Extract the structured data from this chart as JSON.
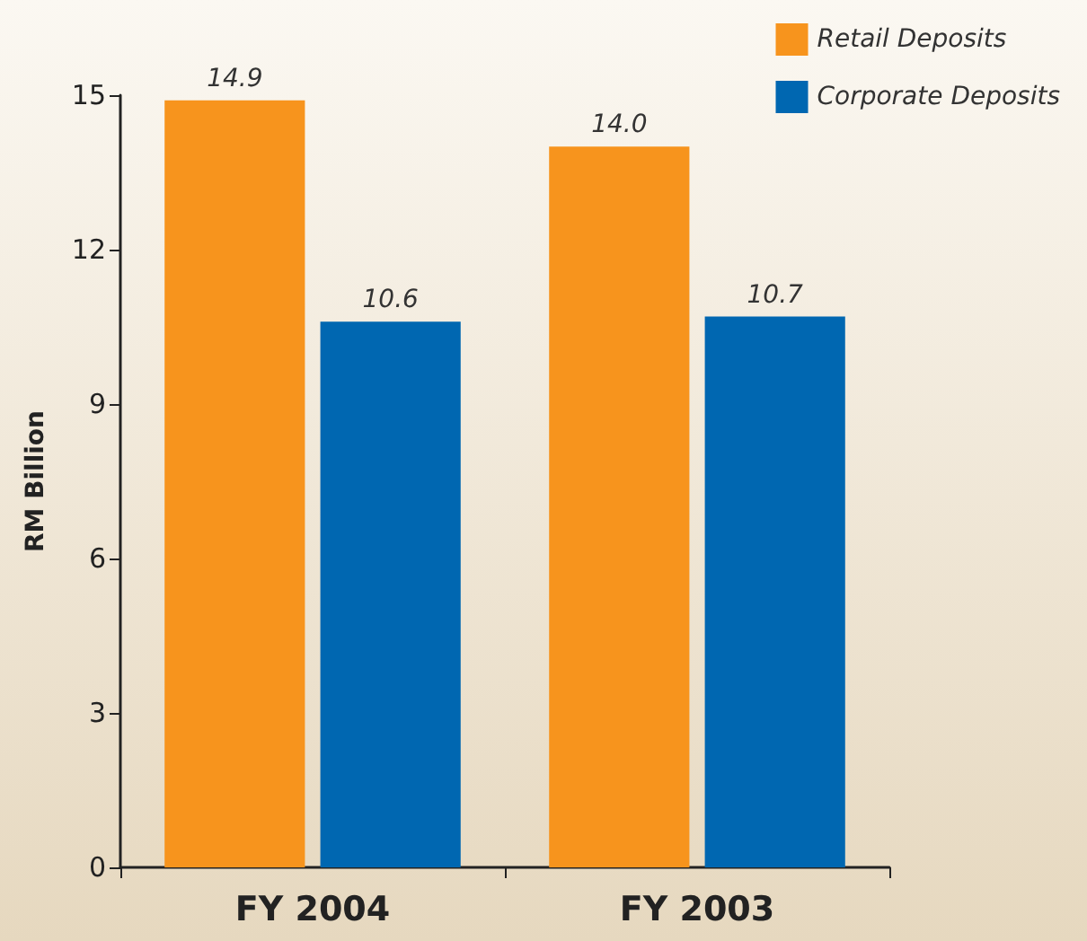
{
  "chart_data": {
    "type": "bar",
    "categories": [
      "FY 2004",
      "FY 2003"
    ],
    "series": [
      {
        "name": "Retail Deposits",
        "color": "#f7941d",
        "values": [
          14.9,
          14.0
        ],
        "value_labels": [
          "14.9",
          "14.0"
        ]
      },
      {
        "name": "Corporate Deposits",
        "color": "#0067b1",
        "values": [
          10.6,
          10.7
        ],
        "value_labels": [
          "10.6",
          "10.7"
        ]
      }
    ],
    "ylabel": "RM Billion",
    "ylim": [
      0,
      15
    ],
    "yticks": [
      0,
      3,
      6,
      9,
      12,
      15
    ],
    "grid": false,
    "legend": "top right"
  }
}
